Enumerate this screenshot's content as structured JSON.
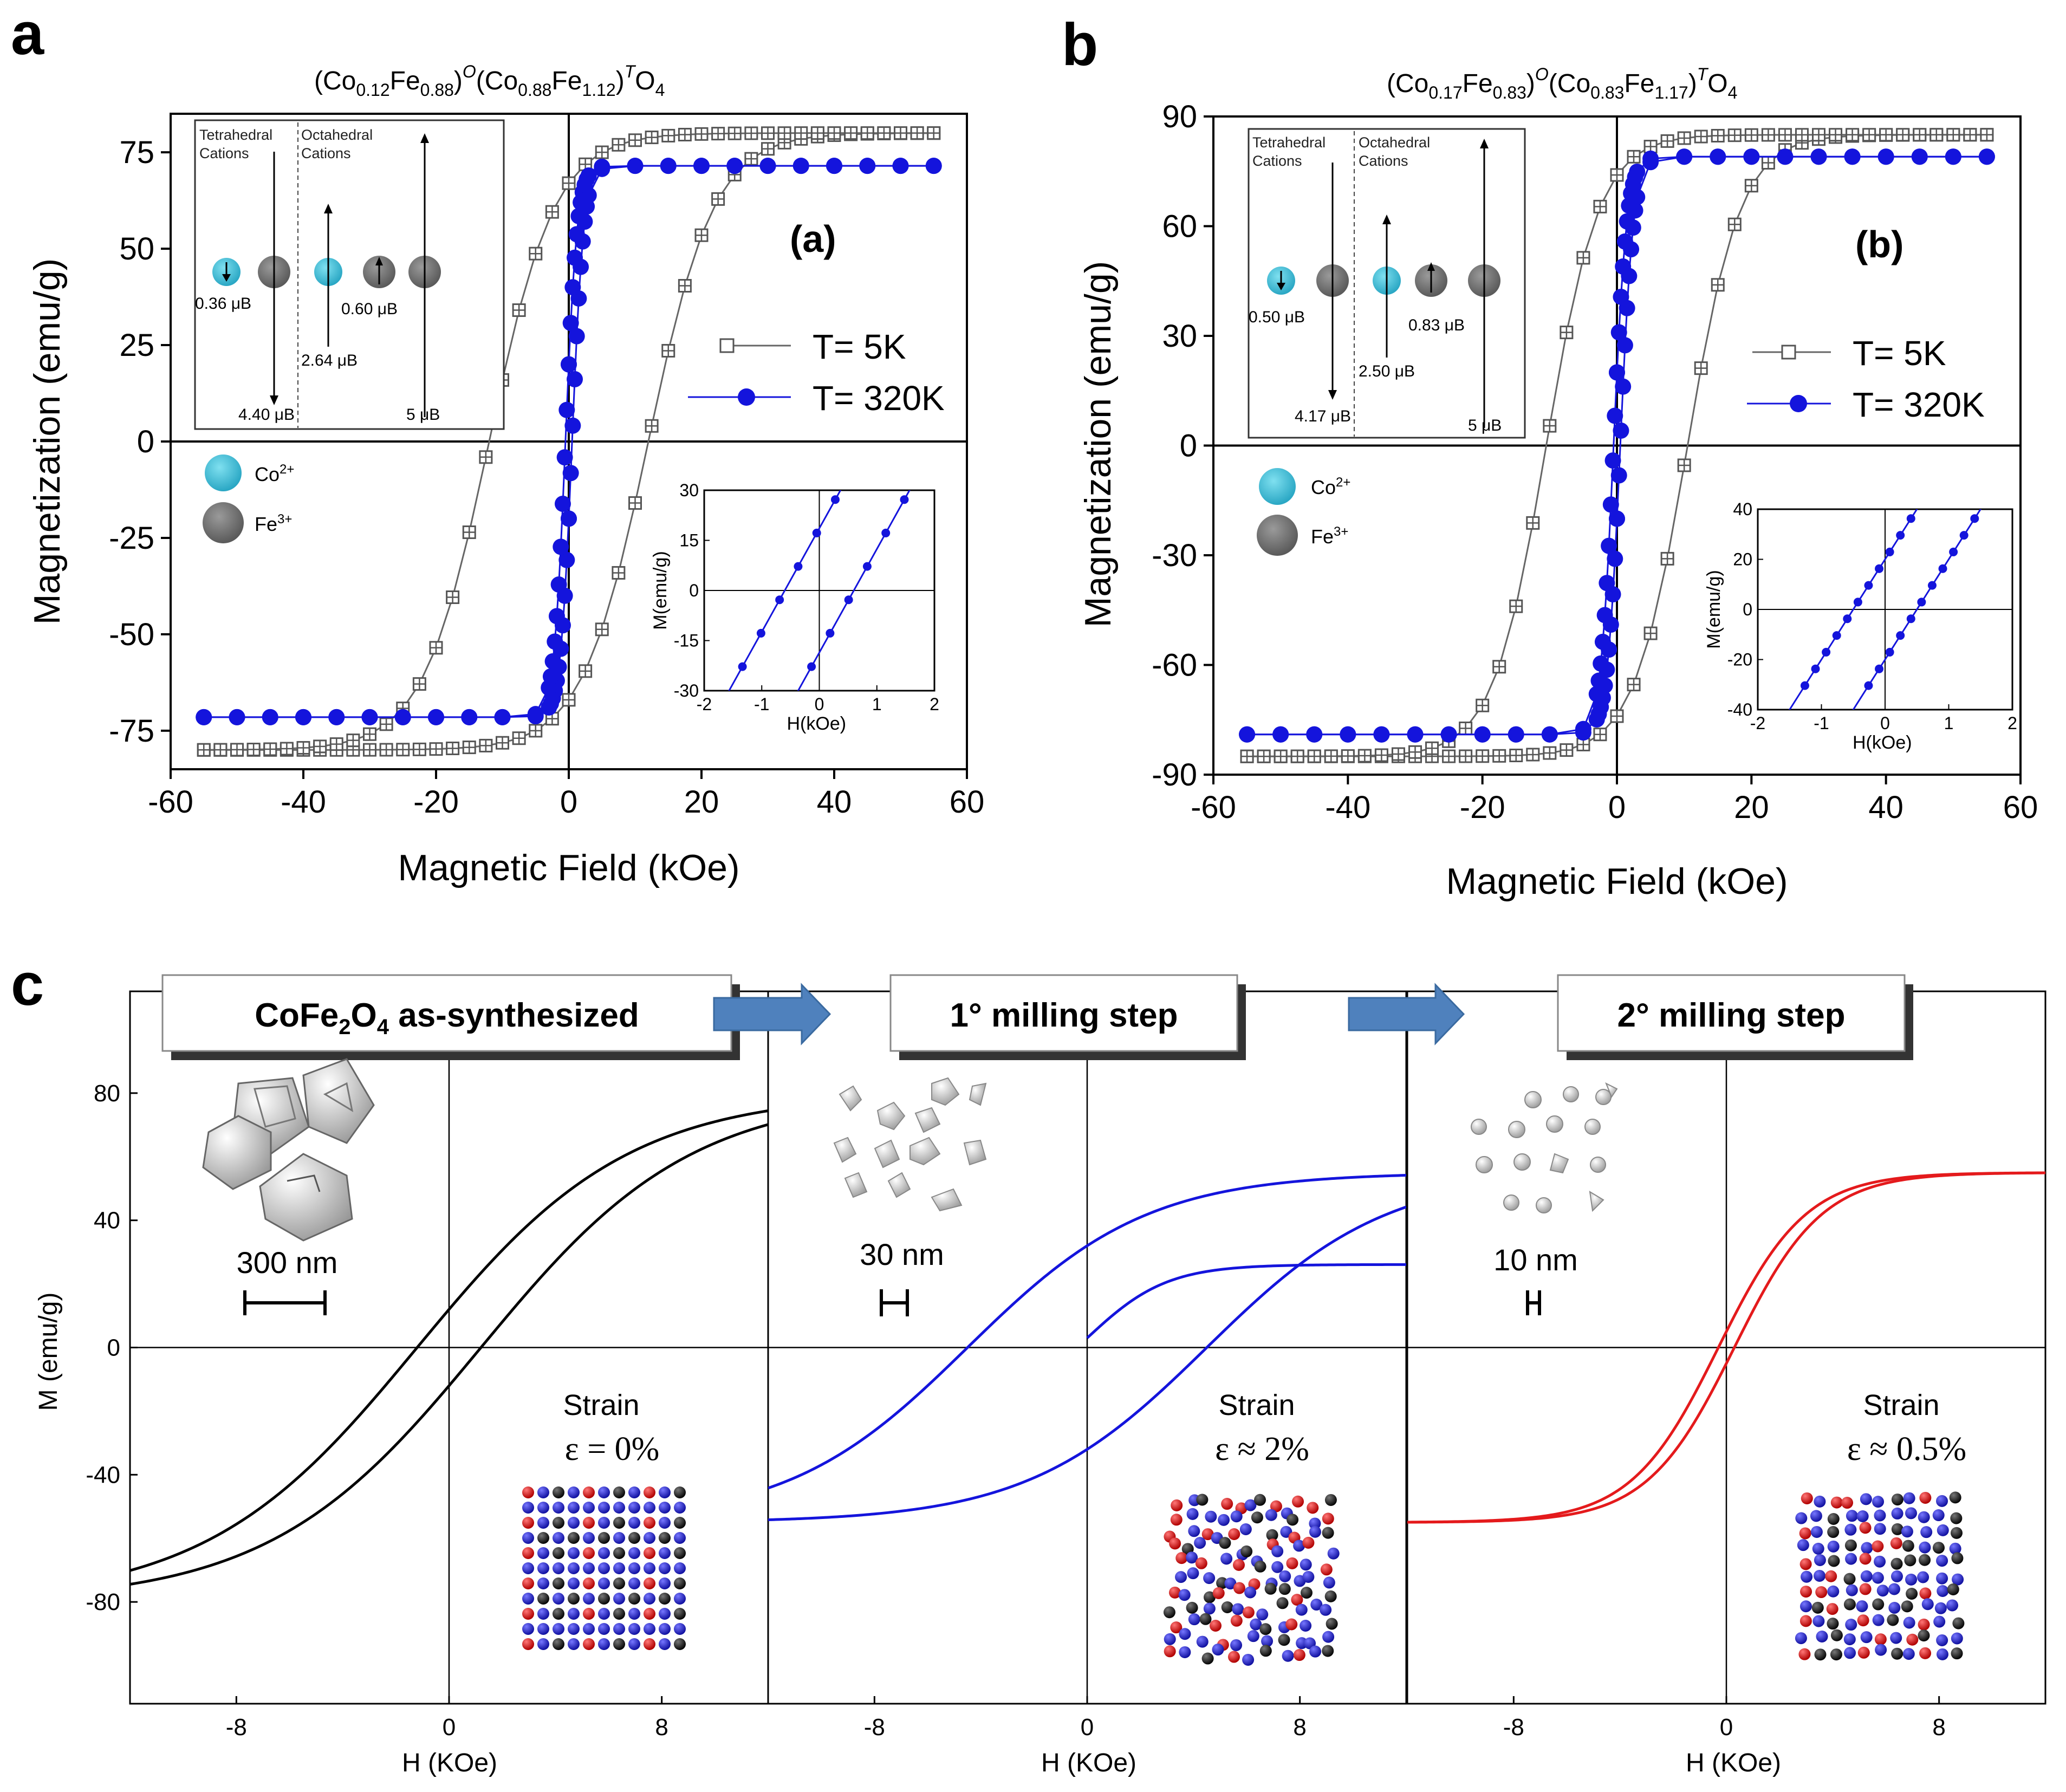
{
  "panels": {
    "a": {
      "letter": "a",
      "title_base": "(Co",
      "title_sub1": "0.12",
      "title_mid1": "Fe",
      "title_sub2": "0.88",
      "title_mid2": ")",
      "title_sup1": "O",
      "title_mid3": "(Co",
      "title_sub3": "0.88",
      "title_mid4": "Fe",
      "title_sub4": "1.12",
      "title_mid5": ")",
      "title_sup2": "T",
      "title_end": "O",
      "title_sub5": "4",
      "tag": "(a)",
      "inset_label_tet": "Tetrahedral",
      "inset_label_tet2": "Cations",
      "inset_label_oct": "Octahedral",
      "inset_label_oct2": "Cations",
      "moments": [
        "0.36 μB",
        "2.64 μB",
        "0.60 μB",
        "4.40 μB",
        "5 μB"
      ],
      "legend_co": "Co",
      "legend_co_sup": "2+",
      "legend_fe": "Fe",
      "legend_fe_sup": "3+"
    },
    "b": {
      "letter": "b",
      "title_sub1": "0.17",
      "title_sub2": "0.83",
      "title_sub3": "0.83",
      "title_sub4": "1.17",
      "tag": "(b)",
      "moments": [
        "0.50 μB",
        "2.50 μB",
        "0.83 μB",
        "4.17 μB",
        "5 μB"
      ]
    },
    "c": {
      "letter": "c",
      "boxes": [
        "as-synthesized",
        "1° milling step",
        "2° milling step"
      ],
      "box1_prefix": "CoFe",
      "box1_sub1": "2",
      "box1_mid": "O",
      "box1_sub2": "4",
      "scales": [
        "300 nm",
        "30 nm",
        "10 nm"
      ],
      "strain_label": "Strain",
      "strain_values": [
        "ε = 0%",
        "ε ≈ 2%",
        "ε ≈ 0.5%"
      ]
    }
  },
  "chart_data": [
    {
      "id": "a",
      "type": "line",
      "title": "(Co0.12Fe0.88)O(Co0.88Fe1.12)TO4",
      "xlabel": "Magnetic Field (kOe)",
      "ylabel": "Magnetization (emu/g)",
      "xlim": [
        -60,
        60
      ],
      "ylim": [
        -85,
        85
      ],
      "xticks": [
        -60,
        -40,
        -20,
        0,
        20,
        40,
        60
      ],
      "yticks": [
        -75,
        -50,
        -25,
        0,
        25,
        50,
        75
      ],
      "series": [
        {
          "name": "T= 5K",
          "Ms": 80,
          "Hc": 12,
          "Mr": 67,
          "color": "#666666",
          "marker": "square-plus"
        },
        {
          "name": "T= 320K",
          "Ms": 71.5,
          "Hc": 0.5,
          "Mr": 20,
          "color": "#1414dc",
          "marker": "circle"
        }
      ],
      "inset": {
        "xlabel": "H(kOe)",
        "ylabel": "M(emu/g)",
        "xlim": [
          -2,
          2
        ],
        "ylim": [
          -30,
          30
        ],
        "xticks": [
          -2,
          -1,
          0,
          1,
          2
        ],
        "yticks": [
          -30,
          -15,
          0,
          15,
          30
        ],
        "Hc": 0.6,
        "slope": 31
      }
    },
    {
      "id": "b",
      "type": "line",
      "title": "(Co0.17Fe0.83)O(Co0.83Fe1.17)TO4",
      "xlabel": "Magnetic Field (kOe)",
      "ylabel": "Magnetization (emu/g)",
      "xlim": [
        -60,
        60
      ],
      "ylim": [
        -90,
        90
      ],
      "xticks": [
        -60,
        -40,
        -20,
        0,
        20,
        40,
        60
      ],
      "yticks": [
        -90,
        -60,
        -30,
        0,
        30,
        60,
        90
      ],
      "series": [
        {
          "name": "T= 5K",
          "Ms": 85,
          "Hc": 10.5,
          "Mr": 74,
          "color": "#666666",
          "marker": "square-plus"
        },
        {
          "name": "T= 320K",
          "Ms": 79,
          "Hc": 0.5,
          "Mr": 20,
          "color": "#1414dc",
          "marker": "circle"
        }
      ],
      "inset": {
        "xlabel": "H(kOe)",
        "ylabel": "M(emu/g)",
        "xlim": [
          -2,
          2
        ],
        "ylim": [
          -40,
          40
        ],
        "xticks": [
          -2,
          -1,
          0,
          1,
          2
        ],
        "yticks": [
          -40,
          -20,
          0,
          20,
          40
        ],
        "Hc": 0.5,
        "slope": 40
      }
    },
    {
      "id": "c",
      "type": "line",
      "xlabel": "H (KOe)",
      "ylabel": "M (emu/g)",
      "ylim": [
        -112,
        112
      ],
      "yticks": [
        -80,
        -40,
        0,
        40,
        80
      ],
      "xticks": [
        -8,
        0,
        8
      ],
      "panels": [
        {
          "name": "CoFe2O4 as-synthesized",
          "xlim": [
            -12,
            12
          ],
          "color": "#000000",
          "Ms": 80,
          "Hc": 1.2,
          "Mr": 12
        },
        {
          "name": "1° milling step",
          "xlim": [
            -12,
            12
          ],
          "color": "#1414dc",
          "Ms": 55,
          "Hc": 4.5,
          "Mr": 32
        },
        {
          "name": "2° milling step",
          "xlim": [
            -12,
            12
          ],
          "color": "#e41a1c",
          "Ms": 55,
          "Hc": 0.3,
          "Mr": 5
        }
      ]
    }
  ]
}
